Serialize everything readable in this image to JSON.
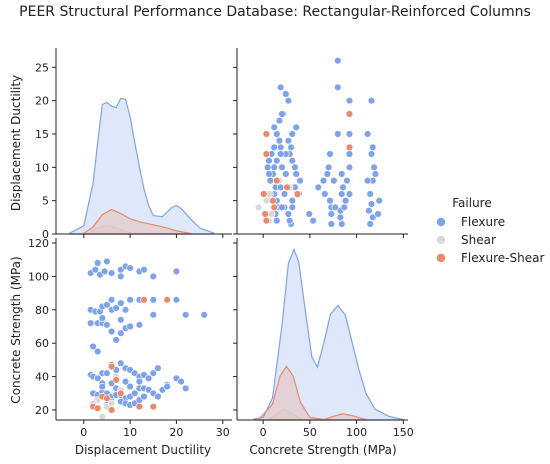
{
  "title": "PEER Structural Performance Database: Rectangular-Reinforced Columns",
  "colors": {
    "Flexure": "#7fa3ea",
    "Shear": "#d9d9d9",
    "Flexure-Shear": "#ea8a6a",
    "axis": "#222222",
    "bg": "#ffffff"
  },
  "legend": {
    "title": "Failure",
    "position": "right",
    "entries": [
      "Flexure",
      "Shear",
      "Flexure-Shear"
    ]
  },
  "chart_data": {
    "type": "scatter",
    "subtype": "pairplot",
    "variables": [
      "Displacement Ductility",
      "Concrete Strength (MPa)"
    ],
    "axes": {
      "Displacement Ductility": {
        "label": "Displacement Ductility",
        "range": [
          -6,
          32
        ],
        "ticks": [
          0,
          10,
          20,
          30
        ]
      },
      "Concrete Strength (MPa)": {
        "label": "Concrete Strength (MPa)",
        "range": [
          14,
          123
        ],
        "ticks": [
          20,
          40,
          60,
          80,
          100,
          120
        ],
        "kde_range": [
          -28,
          155
        ],
        "kde_ticks": [
          0,
          50,
          100,
          150
        ]
      }
    },
    "grid": false,
    "series": [
      {
        "name": "Flexure",
        "points": [
          [
            1.5,
            102
          ],
          [
            2.5,
            104
          ],
          [
            3.5,
            101
          ],
          [
            4.5,
            103
          ],
          [
            3,
            108
          ],
          [
            5,
            109
          ],
          [
            6,
            102
          ],
          [
            8,
            104
          ],
          [
            9,
            106
          ],
          [
            10,
            105
          ],
          [
            12,
            103
          ],
          [
            13,
            104
          ],
          [
            15,
            100
          ],
          [
            20,
            103
          ],
          [
            8,
            100
          ],
          [
            1.5,
            80
          ],
          [
            2.5,
            79
          ],
          [
            3.5,
            79
          ],
          [
            4,
            82
          ],
          [
            5,
            83
          ],
          [
            6,
            80
          ],
          [
            6,
            86
          ],
          [
            7,
            81
          ],
          [
            8,
            84
          ],
          [
            9,
            80
          ],
          [
            10,
            86
          ],
          [
            12,
            86
          ],
          [
            13,
            86
          ],
          [
            15,
            86
          ],
          [
            20,
            86
          ],
          [
            22,
            77
          ],
          [
            26,
            77
          ],
          [
            8,
            74
          ],
          [
            1.5,
            72
          ],
          [
            3,
            72
          ],
          [
            4,
            72
          ],
          [
            5,
            71
          ],
          [
            6,
            67
          ],
          [
            8,
            66
          ],
          [
            9,
            69
          ],
          [
            7,
            62
          ],
          [
            10,
            70
          ],
          [
            12,
            71
          ],
          [
            4,
            75
          ],
          [
            15,
            77
          ],
          [
            2,
            58
          ],
          [
            3,
            55
          ],
          [
            1.5,
            41
          ],
          [
            2,
            40
          ],
          [
            3,
            39
          ],
          [
            4,
            42
          ],
          [
            5,
            42
          ],
          [
            6,
            47
          ],
          [
            7,
            44
          ],
          [
            8,
            48
          ],
          [
            9,
            45
          ],
          [
            10,
            44
          ],
          [
            11,
            42
          ],
          [
            12,
            40
          ],
          [
            13,
            41
          ],
          [
            15,
            42
          ],
          [
            16,
            45
          ],
          [
            14,
            39
          ],
          [
            12,
            37
          ],
          [
            9,
            37
          ],
          [
            6,
            36
          ],
          [
            4,
            36
          ],
          [
            20,
            39
          ],
          [
            21,
            37
          ],
          [
            22,
            33
          ],
          [
            18,
            35
          ],
          [
            2,
            30
          ],
          [
            3,
            29
          ],
          [
            4,
            31
          ],
          [
            5,
            30
          ],
          [
            6,
            28
          ],
          [
            7,
            29
          ],
          [
            8,
            29
          ],
          [
            9,
            27
          ],
          [
            10,
            28
          ],
          [
            11,
            30
          ],
          [
            12,
            33
          ],
          [
            13,
            33
          ],
          [
            14,
            32
          ],
          [
            15,
            30
          ],
          [
            16,
            28
          ],
          [
            17,
            32
          ],
          [
            18,
            34
          ],
          [
            8,
            25
          ],
          [
            9,
            24
          ],
          [
            10,
            23
          ],
          [
            11,
            24
          ],
          [
            12,
            26
          ],
          [
            6,
            25
          ],
          [
            5,
            23
          ],
          [
            3,
            26
          ],
          [
            7,
            33
          ],
          [
            4,
            34
          ],
          [
            10,
            34
          ],
          [
            13,
            28
          ]
        ]
      },
      {
        "name": "Shear",
        "points": [
          [
            3,
            26
          ],
          [
            4,
            16
          ],
          [
            5,
            22
          ],
          [
            2,
            24
          ],
          [
            6,
            24
          ],
          [
            7,
            40
          ],
          [
            8,
            32
          ]
        ]
      },
      {
        "name": "Flexure-Shear",
        "points": [
          [
            2,
            22
          ],
          [
            4,
            28
          ],
          [
            5,
            27
          ],
          [
            6,
            46
          ],
          [
            7,
            38
          ],
          [
            8,
            30
          ],
          [
            3,
            21
          ],
          [
            12,
            22
          ],
          [
            15,
            22
          ],
          [
            13,
            86
          ],
          [
            18,
            86
          ],
          [
            6,
            20
          ]
        ]
      }
    ],
    "kde": {
      "Displacement Ductility": {
        "Flexure": [
          [
            -3,
            0.1
          ],
          [
            0,
            0.8
          ],
          [
            2,
            5
          ],
          [
            3,
            9
          ],
          [
            4,
            12.7
          ],
          [
            5,
            12.9
          ],
          [
            6,
            12.5
          ],
          [
            7,
            12.4
          ],
          [
            8,
            13.3
          ],
          [
            9,
            13.2
          ],
          [
            10,
            11.5
          ],
          [
            11,
            9
          ],
          [
            12,
            6.6
          ],
          [
            13,
            4.4
          ],
          [
            14,
            2.8
          ],
          [
            15,
            1.8
          ],
          [
            17,
            1.7
          ],
          [
            19,
            2.6
          ],
          [
            20,
            2.8
          ],
          [
            21,
            2.5
          ],
          [
            23,
            1.5
          ],
          [
            25,
            0.6
          ],
          [
            28,
            0.1
          ]
        ],
        "Shear": [
          [
            1,
            0.05
          ],
          [
            3,
            0.6
          ],
          [
            5,
            0.8
          ],
          [
            7,
            0.6
          ],
          [
            10,
            0.1
          ]
        ],
        "Flexure-Shear": [
          [
            0,
            0.05
          ],
          [
            2,
            0.7
          ],
          [
            4,
            1.9
          ],
          [
            6,
            2.4
          ],
          [
            8,
            2.0
          ],
          [
            10,
            1.5
          ],
          [
            12,
            1.2
          ],
          [
            14,
            1.0
          ],
          [
            16,
            0.8
          ],
          [
            18,
            0.6
          ],
          [
            20,
            0.3
          ],
          [
            23,
            0.05
          ]
        ]
      },
      "Concrete Strength (MPa)": {
        "Flexure": [
          [
            -10,
            0.1
          ],
          [
            0,
            0.3
          ],
          [
            10,
            2.5
          ],
          [
            20,
            10.7
          ],
          [
            27,
            17.8
          ],
          [
            33,
            19.4
          ],
          [
            38,
            18.0
          ],
          [
            45,
            12.5
          ],
          [
            52,
            7.2
          ],
          [
            58,
            6.0
          ],
          [
            65,
            8.8
          ],
          [
            72,
            12.0
          ],
          [
            80,
            13.0
          ],
          [
            88,
            11.9
          ],
          [
            95,
            8.9
          ],
          [
            102,
            5.9
          ],
          [
            110,
            3.0
          ],
          [
            120,
            1.2
          ],
          [
            135,
            0.4
          ],
          [
            150,
            0.05
          ]
        ],
        "Shear": [
          [
            5,
            0.05
          ],
          [
            15,
            0.7
          ],
          [
            22,
            1.2
          ],
          [
            30,
            0.8
          ],
          [
            40,
            0.1
          ]
        ],
        "Flexure-Shear": [
          [
            -5,
            0.05
          ],
          [
            10,
            1.8
          ],
          [
            18,
            5.0
          ],
          [
            25,
            6.1
          ],
          [
            32,
            5.0
          ],
          [
            40,
            2.0
          ],
          [
            50,
            0.3
          ],
          [
            65,
            0.05
          ],
          [
            75,
            0.4
          ],
          [
            85,
            0.7
          ],
          [
            95,
            0.5
          ],
          [
            110,
            0.05
          ]
        ]
      }
    }
  }
}
